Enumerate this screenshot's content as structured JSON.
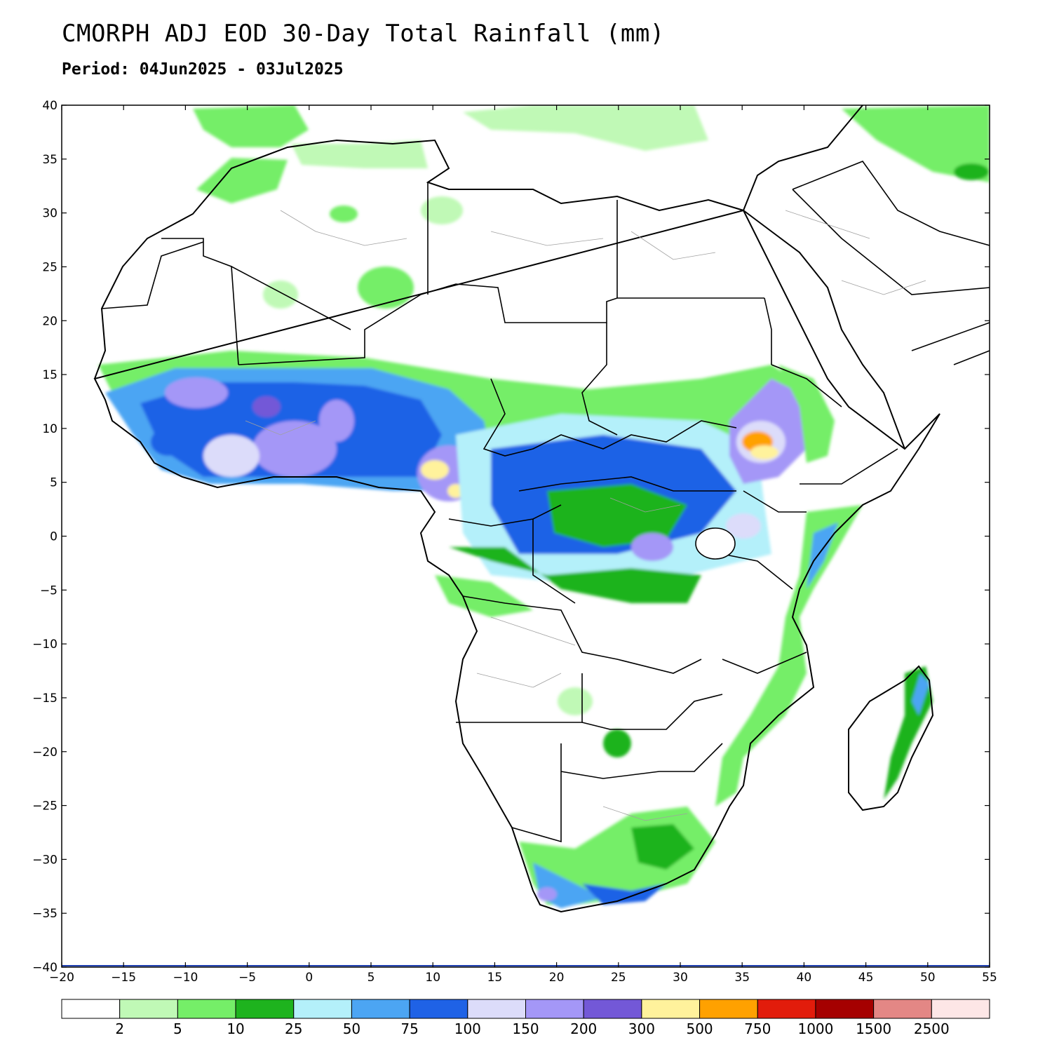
{
  "title": "CMORPH ADJ EOD 30-Day Total Rainfall (mm)",
  "subtitle": "Period: 04Jun2025 - 03Jul2025",
  "map": {
    "lon_range": [
      -20,
      55
    ],
    "lat_range": [
      -40,
      40
    ],
    "lon_ticks": [
      -20,
      -15,
      -10,
      -5,
      0,
      5,
      10,
      15,
      20,
      25,
      30,
      35,
      40,
      45,
      50,
      55
    ],
    "lat_ticks": [
      40,
      35,
      30,
      25,
      20,
      15,
      10,
      5,
      0,
      -5,
      -10,
      -15,
      -20,
      -25,
      -30,
      -35,
      -40
    ],
    "lon_labels": [
      "−20",
      "−15",
      "−10",
      "−5",
      "0",
      "5",
      "10",
      "15",
      "20",
      "25",
      "30",
      "35",
      "40",
      "45",
      "50",
      "55"
    ],
    "lat_labels": [
      "40",
      "35",
      "30",
      "25",
      "20",
      "15",
      "10",
      "5",
      "0",
      "−5",
      "−10",
      "−15",
      "−20",
      "−25",
      "−30",
      "−35",
      "−40"
    ]
  },
  "colorbar": {
    "colors": [
      "#ffffff",
      "#c0f9b6",
      "#75ee68",
      "#1eb31e",
      "#b4f0fa",
      "#4ca5f3",
      "#1f62e6",
      "#dcdcfa",
      "#a497f7",
      "#7358d7",
      "#fff29c",
      "#ffa100",
      "#e21c0b",
      "#a50000",
      "#e38785",
      "#fde6e6"
    ],
    "labels": [
      "2",
      "5",
      "10",
      "25",
      "50",
      "75",
      "100",
      "150",
      "200",
      "300",
      "500",
      "750",
      "1000",
      "1500",
      "2500"
    ]
  }
}
